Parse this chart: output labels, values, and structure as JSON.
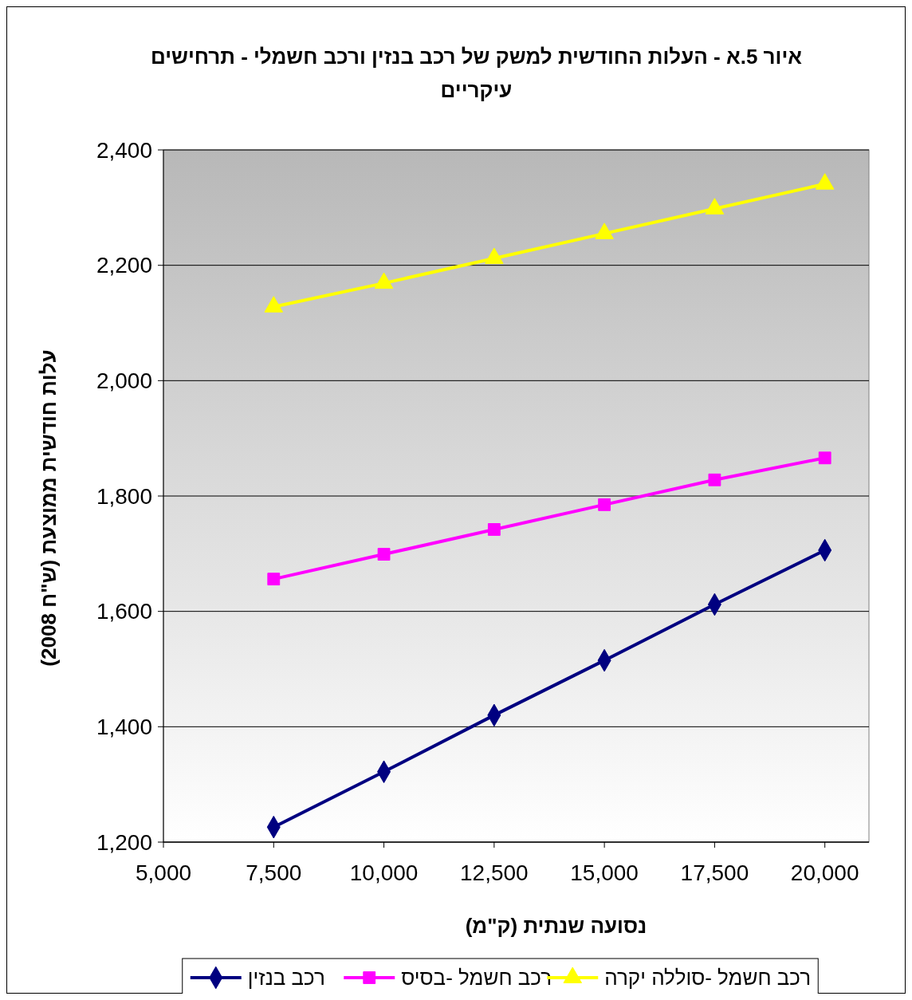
{
  "chart_data": {
    "type": "line",
    "title": "איור 5.א - העלות החודשית למשק של רכב בנזין ורכב חשמלי - תרחישים עיקריים",
    "xlabel": "נסועה שנתית (ק\"מ)",
    "ylabel": "עלות חודשית ממוצעת (ש\"ח 2008)",
    "x": [
      7500,
      10000,
      12500,
      15000,
      17500,
      20000
    ],
    "series": [
      {
        "name": "רכב בנזין",
        "color": "#000080",
        "marker": "diamond",
        "values": [
          1226,
          1322,
          1420,
          1515,
          1612,
          1706
        ]
      },
      {
        "name": "רכב חשמל -בסיס",
        "color": "#ff00ff",
        "marker": "square",
        "values": [
          1656,
          1699,
          1742,
          1785,
          1828,
          1866
        ]
      },
      {
        "name": "רכב חשמל -סוללה יקרה",
        "color": "#ffff00",
        "marker": "triangle",
        "values": [
          2128,
          2169,
          2212,
          2255,
          2298,
          2341
        ]
      }
    ],
    "xlim": [
      5000,
      21000
    ],
    "xticks": [
      {
        "value": 5000,
        "label": "5,000"
      },
      {
        "value": 7500,
        "label": "7,500"
      },
      {
        "value": 10000,
        "label": "10,000"
      },
      {
        "value": 12500,
        "label": "12,500"
      },
      {
        "value": 15000,
        "label": "15,000"
      },
      {
        "value": 17500,
        "label": "17,500"
      },
      {
        "value": 20000,
        "label": "20,000"
      }
    ],
    "ylim": [
      1200,
      2400
    ],
    "yticks": [
      {
        "value": 1200,
        "label": "1,200"
      },
      {
        "value": 1400,
        "label": "1,400"
      },
      {
        "value": 1600,
        "label": "1,600"
      },
      {
        "value": 1800,
        "label": "1,800"
      },
      {
        "value": 2000,
        "label": "2,000"
      },
      {
        "value": 2200,
        "label": "2,200"
      },
      {
        "value": 2400,
        "label": "2,400"
      }
    ],
    "grid": "y",
    "legend": "bottom",
    "line_style": "solid"
  }
}
